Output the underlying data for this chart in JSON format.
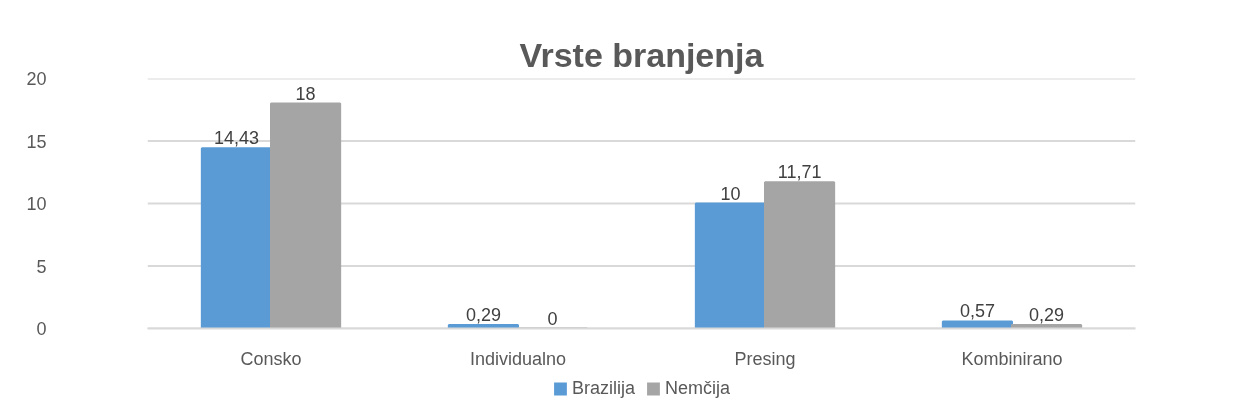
{
  "chart_data": {
    "type": "bar",
    "title": "Vrste branjenja",
    "categories": [
      "Consko",
      "Individualno",
      "Presing",
      "Kombinirano"
    ],
    "series": [
      {
        "name": "Brazilija",
        "color": "#5b9bd5",
        "values": [
          14.43,
          0.29,
          10,
          0.57
        ],
        "value_labels": [
          "14,43",
          "0,29",
          "10",
          "0,57"
        ]
      },
      {
        "name": "Nemčija",
        "color": "#a5a5a5",
        "values": [
          18,
          0,
          11.71,
          0.29
        ],
        "value_labels": [
          "18",
          "0",
          "11,71",
          "0,29"
        ]
      }
    ],
    "ylim": [
      0,
      20
    ],
    "yticks": [
      0,
      5,
      10,
      15,
      20
    ],
    "grid": "y",
    "legend": "bottom"
  }
}
